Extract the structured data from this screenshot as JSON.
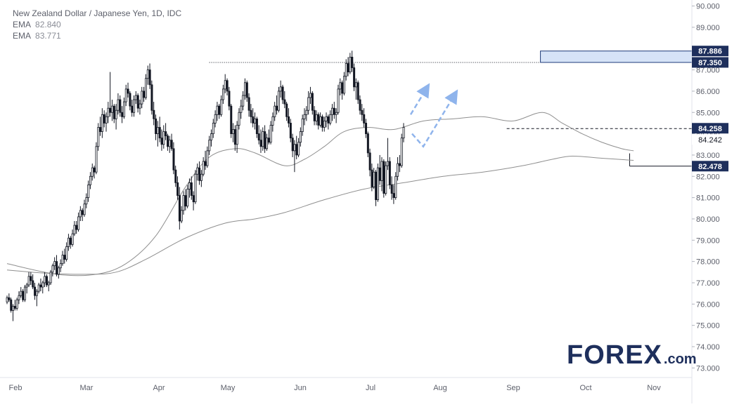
{
  "legend": {
    "title": "New Zealand Dollar / Japanese Yen, 1D, IDC",
    "ema1_label": "EMA",
    "ema1_value": "82.840",
    "ema2_label": "EMA",
    "ema2_value": "83.771"
  },
  "logo": {
    "main": "FOREX",
    "suffix": ".com"
  },
  "colors": {
    "candle": "#131722",
    "ema": "#8f8f8f",
    "zone_fill": "#d6e3f7",
    "zone_border": "#1e3a78",
    "label_bg": "#1e2f5c",
    "arrow": "#8fb4ec",
    "axis_text": "#5d606b",
    "grid": "#e0e3eb"
  },
  "chart_data": {
    "type": "candlestick",
    "title": "New Zealand Dollar / Japanese Yen, 1D, IDC",
    "x_tick_labels": [
      "Feb",
      "Mar",
      "Apr",
      "May",
      "Jun",
      "Jul",
      "Aug",
      "Sep",
      "Oct",
      "Nov"
    ],
    "y_ticks": [
      "73.000",
      "74.000",
      "75.000",
      "76.000",
      "77.000",
      "78.000",
      "79.000",
      "80.000",
      "81.000",
      "82.000",
      "83.000",
      "84.000",
      "85.000",
      "86.000",
      "87.000",
      "88.000",
      "89.000",
      "90.000"
    ],
    "ylim": [
      72.55,
      90.15
    ],
    "price_labels": [
      {
        "value": 87.886,
        "text": "87.886",
        "style": "dark"
      },
      {
        "value": 87.35,
        "text": "87.350",
        "style": "dark"
      },
      {
        "value": 84.258,
        "text": "84.258",
        "style": "dark"
      },
      {
        "value": 84.242,
        "text": "84.242",
        "style": "plain"
      },
      {
        "value": 82.478,
        "text": "82.478",
        "style": "dark"
      }
    ],
    "levels": [
      {
        "value": 87.35,
        "style": "dotted",
        "from_index": 102,
        "to_index": 269
      },
      {
        "value": 84.242,
        "style": "dashed",
        "from_index": 252,
        "to_index": 338
      },
      {
        "value": 82.478,
        "style": "solid",
        "from_index": 314,
        "to_index": 338
      }
    ],
    "zone": {
      "from": 87.35,
      "to": 87.886,
      "from_index": 269,
      "to_index": 338
    },
    "series": [
      {
        "name": "EMA",
        "type": "line",
        "value_label": "82.840",
        "points": [
          [
            0,
            77.9
          ],
          [
            25,
            77.4
          ],
          [
            45,
            77.4
          ],
          [
            60,
            77.9
          ],
          [
            75,
            79.2
          ],
          [
            90,
            81.5
          ],
          [
            102,
            82.9
          ],
          [
            115,
            83.3
          ],
          [
            125,
            83.1
          ],
          [
            140,
            82.5
          ],
          [
            150,
            82.8
          ],
          [
            160,
            83.4
          ],
          [
            170,
            84.1
          ],
          [
            182,
            84.3
          ],
          [
            195,
            84.2
          ],
          [
            210,
            84.6
          ],
          [
            225,
            84.7
          ],
          [
            240,
            84.8
          ],
          [
            255,
            84.6
          ],
          [
            270,
            85.0
          ],
          [
            280,
            84.5
          ],
          [
            290,
            84.0
          ],
          [
            300,
            83.6
          ],
          [
            310,
            83.3
          ],
          [
            316,
            83.2
          ]
        ]
      },
      {
        "name": "EMA",
        "type": "line",
        "value_label": "83.771",
        "points": [
          [
            0,
            77.6
          ],
          [
            20,
            77.45
          ],
          [
            40,
            77.4
          ],
          [
            55,
            77.5
          ],
          [
            70,
            78.1
          ],
          [
            90,
            79.1
          ],
          [
            110,
            79.8
          ],
          [
            125,
            80.0
          ],
          [
            140,
            80.3
          ],
          [
            160,
            80.9
          ],
          [
            180,
            81.4
          ],
          [
            200,
            81.7
          ],
          [
            220,
            82.0
          ],
          [
            240,
            82.2
          ],
          [
            260,
            82.5
          ],
          [
            275,
            82.8
          ],
          [
            285,
            82.95
          ],
          [
            300,
            82.85
          ],
          [
            316,
            82.75
          ]
        ]
      }
    ],
    "candles": [
      [
        76.1,
        76.4,
        76.0,
        76.3
      ],
      [
        76.3,
        76.5,
        76.1,
        76.2
      ],
      [
        76.2,
        76.3,
        75.6,
        75.7
      ],
      [
        75.7,
        76.0,
        75.2,
        75.9
      ],
      [
        75.9,
        76.2,
        75.7,
        75.8
      ],
      [
        75.8,
        76.3,
        75.7,
        76.2
      ],
      [
        76.2,
        76.6,
        76.0,
        76.4
      ],
      [
        76.4,
        76.8,
        76.3,
        76.6
      ],
      [
        76.6,
        76.7,
        76.1,
        76.2
      ],
      [
        76.2,
        76.9,
        76.1,
        76.8
      ],
      [
        76.8,
        77.0,
        76.5,
        76.9
      ],
      [
        76.9,
        77.5,
        76.8,
        77.3
      ],
      [
        77.3,
        77.5,
        76.9,
        77.1
      ],
      [
        77.1,
        77.4,
        76.7,
        76.8
      ],
      [
        76.8,
        77.0,
        76.2,
        76.4
      ],
      [
        76.4,
        76.7,
        75.9,
        76.6
      ],
      [
        76.6,
        77.0,
        76.5,
        76.9
      ],
      [
        76.9,
        77.2,
        76.6,
        76.8
      ],
      [
        76.8,
        77.1,
        76.5,
        77.0
      ],
      [
        77.0,
        77.5,
        76.8,
        77.3
      ],
      [
        77.3,
        77.4,
        76.8,
        76.9
      ],
      [
        76.9,
        77.1,
        76.6,
        77.0
      ],
      [
        77.0,
        77.6,
        76.9,
        77.5
      ],
      [
        77.5,
        77.9,
        77.3,
        77.8
      ],
      [
        77.8,
        78.2,
        77.6,
        78.0
      ],
      [
        78.0,
        78.3,
        77.3,
        77.4
      ],
      [
        77.4,
        77.8,
        77.2,
        77.7
      ],
      [
        77.7,
        78.1,
        77.5,
        77.9
      ],
      [
        77.9,
        78.5,
        77.8,
        78.3
      ],
      [
        78.3,
        78.6,
        77.9,
        78.1
      ],
      [
        78.1,
        78.9,
        78.0,
        78.7
      ],
      [
        78.7,
        79.3,
        78.5,
        79.1
      ],
      [
        79.1,
        79.2,
        78.6,
        78.8
      ],
      [
        78.8,
        79.5,
        78.7,
        79.3
      ],
      [
        79.3,
        79.9,
        79.2,
        79.7
      ],
      [
        79.7,
        79.9,
        79.3,
        79.5
      ],
      [
        79.5,
        80.3,
        79.4,
        80.1
      ],
      [
        80.1,
        80.6,
        79.9,
        80.4
      ],
      [
        80.4,
        80.5,
        79.9,
        80.2
      ],
      [
        80.2,
        80.9,
        80.1,
        80.7
      ],
      [
        80.7,
        81.2,
        80.5,
        81.0
      ],
      [
        81.0,
        81.8,
        80.8,
        81.6
      ],
      [
        81.6,
        82.2,
        81.4,
        82.0
      ],
      [
        82.0,
        82.6,
        81.8,
        82.4
      ],
      [
        82.4,
        82.5,
        81.9,
        82.2
      ],
      [
        82.2,
        83.6,
        82.1,
        83.4
      ],
      [
        83.4,
        84.5,
        83.2,
        84.3
      ],
      [
        84.3,
        84.8,
        83.9,
        84.1
      ],
      [
        84.1,
        85.2,
        83.8,
        84.9
      ],
      [
        84.9,
        85.1,
        84.3,
        84.5
      ],
      [
        84.5,
        85.0,
        84.1,
        84.8
      ],
      [
        84.8,
        85.5,
        84.5,
        85.2
      ],
      [
        85.2,
        86.9,
        84.8,
        85.0
      ],
      [
        85.0,
        85.6,
        84.6,
        85.3
      ],
      [
        85.3,
        85.4,
        84.5,
        84.7
      ],
      [
        84.7,
        85.4,
        84.2,
        85.1
      ],
      [
        85.1,
        85.9,
        84.9,
        85.6
      ],
      [
        85.6,
        85.8,
        84.8,
        85.0
      ],
      [
        85.0,
        85.3,
        84.5,
        84.8
      ],
      [
        84.8,
        85.7,
        84.7,
        85.5
      ],
      [
        85.5,
        86.3,
        85.3,
        86.1
      ],
      [
        86.1,
        86.4,
        85.7,
        85.9
      ],
      [
        85.9,
        86.0,
        85.1,
        85.3
      ],
      [
        85.3,
        85.6,
        84.8,
        85.0
      ],
      [
        85.0,
        85.8,
        84.8,
        85.6
      ],
      [
        85.6,
        86.0,
        85.4,
        85.8
      ],
      [
        85.8,
        85.9,
        85.0,
        85.2
      ],
      [
        85.2,
        85.6,
        84.9,
        85.4
      ],
      [
        85.4,
        86.2,
        85.2,
        86.0
      ],
      [
        86.0,
        86.2,
        85.5,
        85.7
      ],
      [
        85.7,
        86.8,
        85.6,
        86.6
      ],
      [
        86.6,
        87.2,
        86.3,
        87.0
      ],
      [
        87.0,
        87.3,
        86.1,
        86.3
      ],
      [
        86.3,
        86.5,
        84.9,
        85.1
      ],
      [
        85.1,
        85.5,
        84.4,
        84.7
      ],
      [
        84.7,
        84.9,
        83.7,
        84.0
      ],
      [
        84.0,
        84.6,
        83.4,
        84.3
      ],
      [
        84.3,
        84.8,
        83.6,
        83.8
      ],
      [
        83.8,
        84.2,
        83.2,
        83.5
      ],
      [
        83.5,
        84.4,
        83.3,
        84.1
      ],
      [
        84.1,
        84.5,
        83.7,
        83.9
      ],
      [
        83.9,
        84.0,
        83.2,
        83.4
      ],
      [
        83.4,
        83.9,
        83.1,
        83.7
      ],
      [
        83.7,
        84.0,
        83.2,
        83.3
      ],
      [
        83.3,
        83.6,
        82.1,
        82.3
      ],
      [
        82.3,
        82.5,
        81.5,
        81.7
      ],
      [
        81.7,
        82.0,
        80.9,
        81.1
      ],
      [
        81.1,
        81.5,
        79.5,
        79.9
      ],
      [
        79.9,
        80.6,
        79.8,
        80.4
      ],
      [
        80.4,
        81.3,
        80.2,
        81.1
      ],
      [
        81.1,
        81.4,
        80.4,
        80.6
      ],
      [
        80.6,
        81.6,
        80.5,
        81.4
      ],
      [
        81.4,
        81.9,
        81.0,
        81.7
      ],
      [
        81.7,
        82.0,
        80.9,
        81.1
      ],
      [
        81.1,
        81.3,
        80.4,
        80.8
      ],
      [
        80.8,
        82.3,
        80.7,
        82.1
      ],
      [
        82.1,
        82.6,
        81.8,
        82.4
      ],
      [
        82.4,
        82.7,
        81.6,
        81.8
      ],
      [
        81.8,
        82.3,
        81.5,
        82.1
      ],
      [
        82.1,
        82.9,
        82.0,
        82.7
      ],
      [
        82.7,
        83.2,
        82.3,
        82.5
      ],
      [
        82.5,
        83.4,
        82.4,
        83.2
      ],
      [
        83.2,
        83.9,
        83.0,
        83.7
      ],
      [
        83.7,
        84.2,
        83.4,
        84.0
      ],
      [
        84.0,
        84.7,
        83.8,
        84.5
      ],
      [
        84.5,
        85.1,
        84.3,
        84.9
      ],
      [
        84.9,
        85.5,
        84.6,
        85.3
      ],
      [
        85.3,
        85.4,
        84.7,
        84.9
      ],
      [
        84.9,
        85.8,
        84.8,
        85.6
      ],
      [
        85.6,
        86.3,
        85.4,
        86.1
      ],
      [
        86.1,
        86.8,
        85.9,
        86.5
      ],
      [
        86.5,
        86.6,
        85.8,
        86.0
      ],
      [
        86.0,
        86.2,
        85.1,
        85.3
      ],
      [
        85.3,
        85.4,
        83.8,
        84.0
      ],
      [
        84.0,
        84.5,
        83.6,
        84.2
      ],
      [
        84.2,
        84.4,
        83.2,
        83.5
      ],
      [
        83.5,
        84.6,
        83.1,
        84.4
      ],
      [
        84.4,
        85.2,
        84.2,
        85.0
      ],
      [
        85.0,
        85.6,
        84.7,
        85.3
      ],
      [
        85.3,
        86.0,
        85.1,
        85.8
      ],
      [
        85.8,
        86.6,
        85.6,
        86.4
      ],
      [
        86.4,
        86.5,
        85.5,
        85.7
      ],
      [
        85.7,
        85.9,
        84.8,
        85.1
      ],
      [
        85.1,
        85.4,
        84.5,
        84.8
      ],
      [
        84.8,
        85.2,
        84.3,
        84.5
      ],
      [
        84.5,
        85.0,
        84.2,
        84.7
      ],
      [
        84.7,
        84.8,
        83.8,
        84.0
      ],
      [
        84.0,
        84.4,
        83.5,
        83.7
      ],
      [
        83.7,
        84.2,
        83.1,
        83.4
      ],
      [
        83.4,
        84.3,
        83.2,
        84.1
      ],
      [
        84.1,
        84.4,
        83.1,
        83.3
      ],
      [
        83.3,
        84.0,
        83.2,
        83.8
      ],
      [
        83.8,
        84.2,
        83.5,
        83.6
      ],
      [
        83.6,
        84.6,
        83.5,
        84.4
      ],
      [
        84.4,
        85.0,
        84.1,
        84.8
      ],
      [
        84.8,
        85.5,
        84.6,
        85.3
      ],
      [
        85.3,
        85.8,
        84.9,
        85.1
      ],
      [
        85.1,
        86.2,
        85.0,
        86.0
      ],
      [
        86.0,
        86.5,
        85.7,
        86.2
      ],
      [
        86.2,
        86.3,
        85.4,
        85.6
      ],
      [
        85.6,
        86.0,
        85.2,
        85.4
      ],
      [
        85.4,
        85.5,
        84.6,
        84.8
      ],
      [
        84.8,
        85.2,
        84.3,
        84.5
      ],
      [
        84.5,
        84.7,
        83.6,
        83.8
      ],
      [
        83.8,
        84.0,
        82.9,
        83.2
      ],
      [
        83.2,
        83.7,
        82.2,
        83.5
      ],
      [
        83.5,
        83.9,
        82.8,
        83.0
      ],
      [
        83.0,
        83.8,
        82.9,
        83.6
      ],
      [
        83.6,
        84.3,
        83.4,
        84.1
      ],
      [
        84.1,
        84.9,
        83.9,
        84.7
      ],
      [
        84.7,
        85.2,
        84.4,
        84.9
      ],
      [
        84.9,
        85.3,
        84.6,
        85.1
      ],
      [
        85.1,
        86.0,
        84.9,
        85.7
      ],
      [
        85.7,
        86.2,
        85.4,
        85.9
      ],
      [
        85.9,
        86.0,
        84.9,
        85.1
      ],
      [
        85.1,
        85.3,
        84.4,
        84.6
      ],
      [
        84.6,
        85.1,
        84.4,
        84.9
      ],
      [
        84.9,
        85.0,
        84.2,
        84.4
      ],
      [
        84.4,
        85.0,
        84.3,
        84.8
      ],
      [
        84.8,
        84.9,
        84.1,
        84.3
      ],
      [
        84.3,
        84.8,
        84.1,
        84.6
      ],
      [
        84.6,
        85.0,
        84.3,
        84.8
      ],
      [
        84.8,
        84.9,
        84.2,
        84.5
      ],
      [
        84.5,
        85.1,
        84.4,
        84.9
      ],
      [
        84.9,
        85.4,
        84.6,
        85.2
      ],
      [
        85.2,
        85.5,
        84.7,
        84.9
      ],
      [
        84.9,
        85.2,
        84.5,
        85.0
      ],
      [
        85.0,
        86.3,
        84.9,
        86.1
      ],
      [
        86.1,
        86.6,
        85.8,
        86.4
      ],
      [
        86.4,
        86.5,
        85.6,
        85.9
      ],
      [
        85.9,
        86.9,
        85.8,
        86.7
      ],
      [
        86.7,
        87.5,
        86.5,
        87.3
      ],
      [
        87.3,
        87.6,
        86.7,
        86.9
      ],
      [
        86.9,
        87.8,
        86.8,
        87.6
      ],
      [
        87.6,
        87.9,
        86.9,
        87.1
      ],
      [
        87.1,
        87.3,
        86.0,
        86.2
      ],
      [
        86.2,
        86.6,
        85.6,
        86.4
      ],
      [
        86.4,
        86.5,
        85.4,
        85.6
      ],
      [
        85.6,
        85.8,
        84.9,
        85.1
      ],
      [
        85.1,
        85.4,
        84.6,
        84.9
      ],
      [
        84.9,
        85.2,
        84.3,
        84.5
      ],
      [
        84.5,
        84.7,
        83.8,
        84.0
      ],
      [
        84.0,
        84.1,
        82.9,
        83.1
      ],
      [
        83.1,
        83.3,
        82.0,
        82.3
      ],
      [
        82.3,
        82.6,
        81.3,
        81.5
      ],
      [
        81.5,
        82.4,
        81.4,
        82.2
      ],
      [
        82.2,
        82.3,
        80.6,
        80.9
      ],
      [
        80.9,
        82.6,
        80.8,
        82.4
      ],
      [
        82.4,
        83.0,
        81.6,
        81.8
      ],
      [
        81.8,
        82.9,
        81.3,
        82.7
      ],
      [
        82.7,
        82.8,
        81.0,
        81.2
      ],
      [
        81.2,
        82.7,
        81.1,
        82.5
      ],
      [
        82.5,
        83.8,
        82.3,
        82.7
      ],
      [
        82.7,
        82.9,
        81.4,
        81.6
      ],
      [
        81.6,
        82.0,
        80.9,
        81.2
      ],
      [
        81.2,
        81.6,
        80.7,
        81.0
      ],
      [
        81.0,
        82.2,
        80.9,
        82.0
      ],
      [
        82.0,
        82.9,
        81.8,
        82.6
      ],
      [
        82.6,
        83.0,
        82.2,
        82.5
      ],
      [
        82.5,
        84.0,
        82.4,
        83.8
      ],
      [
        83.8,
        84.5,
        83.6,
        84.3
      ]
    ]
  }
}
